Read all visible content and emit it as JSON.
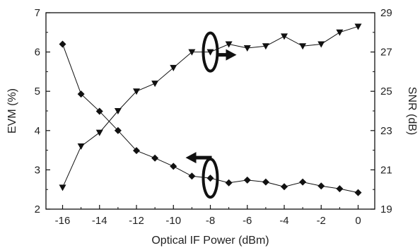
{
  "chart_data": {
    "type": "line",
    "xlabel": "Optical IF Power (dBm)",
    "ylabel_left": "EVM (%)",
    "ylabel_right": "SNR (dB)",
    "xlim": [
      -16.9,
      0.9
    ],
    "ylim_left": [
      2,
      7
    ],
    "ylim_right": [
      19,
      29
    ],
    "xticks": [
      -16,
      -14,
      -12,
      -10,
      -8,
      -6,
      -4,
      -2,
      0
    ],
    "yticks_left": [
      2,
      3,
      4,
      5,
      6,
      7
    ],
    "yticks_right": [
      19,
      21,
      23,
      25,
      27,
      29
    ],
    "grid": false,
    "x": [
      -16,
      -15,
      -14,
      -13,
      -12,
      -11,
      -10,
      -9,
      -8,
      -7,
      -6,
      -5,
      -4,
      -3,
      -2,
      -1,
      0
    ],
    "series": [
      {
        "axis": "left",
        "marker": "diamond",
        "values": [
          6.2,
          4.93,
          4.49,
          4.0,
          3.49,
          3.3,
          3.09,
          2.84,
          2.79,
          2.67,
          2.74,
          2.69,
          2.57,
          2.69,
          2.59,
          2.52,
          2.42
        ]
      },
      {
        "axis": "right",
        "marker": "triangle-down",
        "values": [
          20.1,
          22.2,
          22.9,
          24.0,
          25.0,
          25.4,
          26.2,
          27.0,
          27.0,
          27.4,
          27.2,
          27.3,
          27.8,
          27.3,
          27.4,
          28.0,
          28.3
        ]
      }
    ],
    "annotations": [
      {
        "type": "ellipse-arrow",
        "series": 1,
        "direction": "right"
      },
      {
        "type": "ellipse-arrow",
        "series": 0,
        "direction": "left"
      }
    ]
  }
}
